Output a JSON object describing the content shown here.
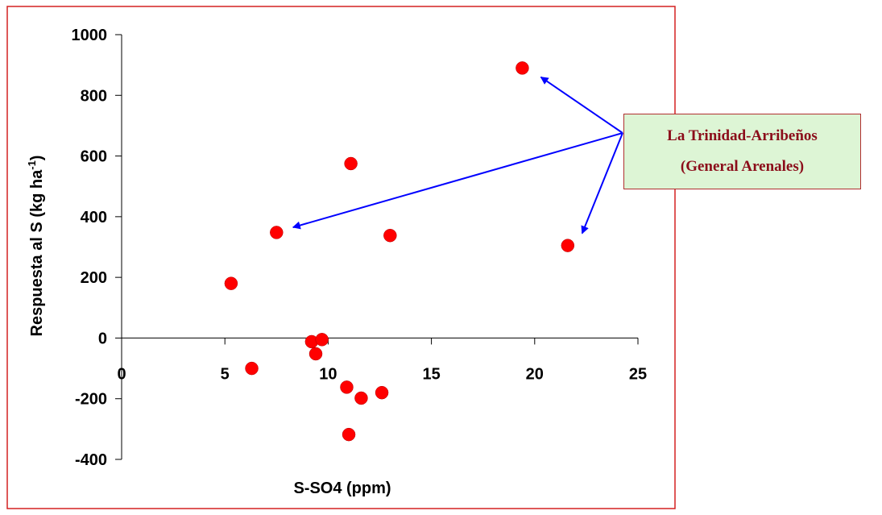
{
  "chart_data": {
    "type": "scatter",
    "xlabel": "S-SO4 (ppm)",
    "ylabel_main": "Respuesta al S (kg ha",
    "ylabel_sup": "-1",
    "ylabel_close": ")",
    "xlim": [
      0,
      25
    ],
    "ylim": [
      -400,
      1000
    ],
    "xticks": [
      0,
      5,
      10,
      15,
      20,
      25
    ],
    "yticks": [
      -400,
      -200,
      0,
      200,
      400,
      600,
      800,
      1000
    ],
    "grid": false,
    "legend": "none",
    "marker_color": "#ff0000",
    "frame_color": "#d42020",
    "arrow_color": "#0000ff",
    "points": [
      {
        "x": 5.3,
        "y": 180
      },
      {
        "x": 6.3,
        "y": -100
      },
      {
        "x": 7.5,
        "y": 348
      },
      {
        "x": 9.2,
        "y": -12
      },
      {
        "x": 9.4,
        "y": -52
      },
      {
        "x": 9.7,
        "y": -5
      },
      {
        "x": 10.9,
        "y": -162
      },
      {
        "x": 11.0,
        "y": -318
      },
      {
        "x": 11.1,
        "y": 575
      },
      {
        "x": 11.6,
        "y": -198
      },
      {
        "x": 12.6,
        "y": -180
      },
      {
        "x": 13.0,
        "y": 338
      },
      {
        "x": 19.4,
        "y": 890
      },
      {
        "x": 21.6,
        "y": 305
      }
    ],
    "annotation": {
      "line1": "La Trinidad-Arribeños",
      "line2": "(General Arenales)",
      "targets": [
        {
          "x": 20.3,
          "y": 860
        },
        {
          "x": 8.3,
          "y": 365
        },
        {
          "x": 22.3,
          "y": 345
        }
      ]
    }
  }
}
